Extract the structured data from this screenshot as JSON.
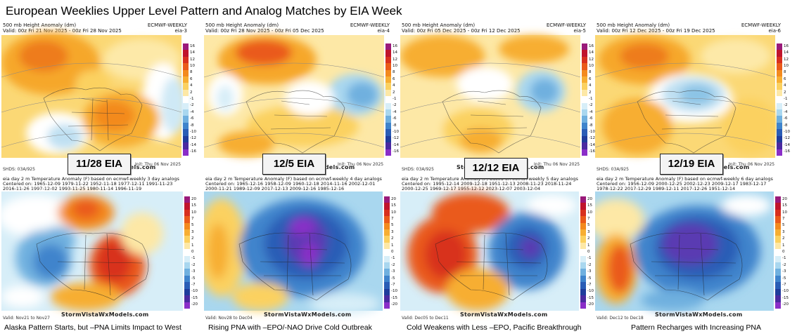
{
  "title": "European Weeklies Upper Level Pattern and Analog Matches by EIA Week",
  "common": {
    "height_title": "500 mb Height Anomaly (dm)",
    "model": "ECMWF-WEEKLY",
    "init": "Init: Thu 06 Nov 2025",
    "watermark": "StormVistaWxModels.com",
    "height_scale": [
      "16",
      "14",
      "12",
      "10",
      "8",
      "6",
      "4",
      "2",
      "-1",
      "-2",
      "-4",
      "-6",
      "-8",
      "-10",
      "-12",
      "-14",
      "-16"
    ],
    "temp_scale": [
      "20",
      "15",
      "10",
      "7",
      "5",
      "3",
      "2",
      "1",
      "0",
      "-1",
      "-2",
      "-3",
      "-5",
      "-7",
      "-10",
      "-15",
      "-20"
    ],
    "colors": {
      "heat": [
        "#9a1a7a",
        "#c0142c",
        "#d8301e",
        "#ea5a1a",
        "#f38a1e",
        "#f7ae32",
        "#fbd160",
        "#fde8a6",
        "#ffffff",
        "#d7eef8",
        "#a9d7ef",
        "#6fb0df",
        "#3f84cc",
        "#2a5db6",
        "#1f3c9c",
        "#4a2aa0",
        "#8a2ec8"
      ]
    }
  },
  "panels": [
    {
      "id": "eia4",
      "top_header": "Valid: 00z Fri 21 Nov 2025 - 00z Fri 28 Nov 2025",
      "top_tag": "eia-3",
      "eia_label": "11/28 EIA",
      "bottom_header": [
        "eia day 2 m Temperature Anomaly (F) based on ecmwf-weekly 3 day analogs",
        "Centered on: 1965-12-09  1979-11-22  1952-11-18  1977-12-11  1991-11-23",
        "2016-11-26  1997-12-02  1993-11-25  1980-11-14  1996-11-19"
      ],
      "valid": "Valid: Nov21 to Nov27",
      "caption": "Alaska Pattern Starts, but –PNA Limits Impact to West"
    },
    {
      "id": "eia5",
      "top_header": "Valid: 00z Fri 28 Nov 2025 - 00z Fri 05 Dec 2025",
      "top_tag": "eia-4",
      "eia_label": "12/5 EIA",
      "bottom_header": [
        "eia day 2 m Temperature Anomaly (F) based on ecmwf-weekly 4 day analogs",
        "Centered on: 1965-12-16  1958-12-09  1960-12-18  2014-11-16  2002-12-01",
        "2000-11-21  1989-12-09  2017-12-13  2009-12-16  1985-12-16"
      ],
      "valid": "Valid: Nov28 to Dec04",
      "caption": "Rising PNA with –EPO/-NAO Drive Cold Outbreak"
    },
    {
      "id": "eia6",
      "top_header": "Valid: 00z Fri 05 Dec 2025 - 00z Fri 12 Dec 2025",
      "top_tag": "eia-5",
      "eia_label": "12/12 EIA",
      "bottom_header": [
        "eia day 2 m Temperature Anomaly (F) based on ecmwf-weekly 5 day analogs",
        "Centered on: 1995-12-14  2009-12-18  1951-12-13  2008-11-23  2018-11-24",
        "2000-12-25  1969-12-17  1955-12-12  2023-12-07  2003-12-04"
      ],
      "valid": "Valid: Dec05 to Dec11",
      "caption": "Cold Weakens with Less –EPO, Pacific Breakthrough"
    },
    {
      "id": "eia7",
      "top_header": "Valid: 00z Fri 12 Dec 2025 - 00z Fri 19 Dec 2025",
      "top_tag": "eia-6",
      "eia_label": "12/19 EIA",
      "bottom_header": [
        "eia day 2 m Temperature Anomaly (F) based on ecmwf-weekly 6 day analogs",
        "Centered on: 1956-12-09  2000-12-25  2002-12-23  2009-12-17  1983-12-17",
        "1978-12-22  2017-12-29  1989-12-11  2017-12-26  1951-12-14"
      ],
      "valid": "Valid: Dec12 to Dec18",
      "caption": "Pattern Recharges with Increasing PNA"
    }
  ]
}
